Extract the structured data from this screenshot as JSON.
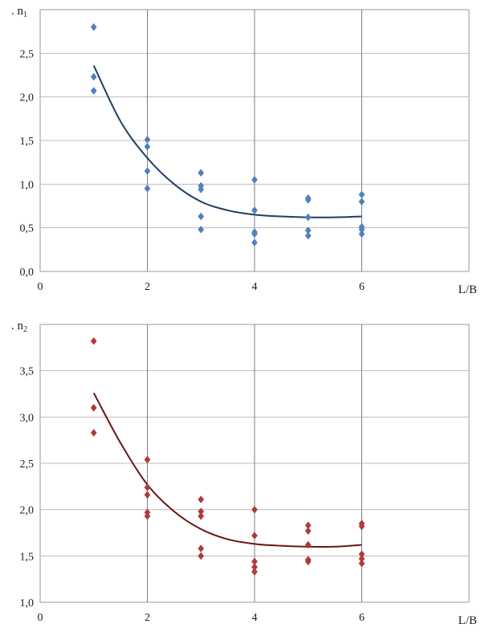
{
  "chart_data": [
    {
      "type": "scatter",
      "ylabel": "n",
      "ylabel_subscript": "1",
      "xlabel": "L/B",
      "xlim": [
        0,
        8
      ],
      "ylim": [
        0,
        3
      ],
      "xticks": [
        "0",
        "2",
        "4",
        "6"
      ],
      "yticks": [
        "0,0",
        "0,5",
        "1,0",
        "1,5",
        "2,0",
        "2,5"
      ],
      "grid": true,
      "marker_color": "#4f81bd",
      "line_color": "#1f3f60",
      "points": [
        {
          "x": 1,
          "y": 2.8
        },
        {
          "x": 1,
          "y": 2.23
        },
        {
          "x": 1,
          "y": 2.07
        },
        {
          "x": 2,
          "y": 1.51
        },
        {
          "x": 2,
          "y": 1.43
        },
        {
          "x": 2,
          "y": 1.15
        },
        {
          "x": 2,
          "y": 0.95
        },
        {
          "x": 3,
          "y": 1.13
        },
        {
          "x": 3,
          "y": 0.98
        },
        {
          "x": 3,
          "y": 0.94
        },
        {
          "x": 3,
          "y": 0.63
        },
        {
          "x": 3,
          "y": 0.48
        },
        {
          "x": 4,
          "y": 1.05
        },
        {
          "x": 4,
          "y": 0.7
        },
        {
          "x": 4,
          "y": 0.45
        },
        {
          "x": 4,
          "y": 0.43
        },
        {
          "x": 4,
          "y": 0.33
        },
        {
          "x": 5,
          "y": 0.84
        },
        {
          "x": 5,
          "y": 0.82
        },
        {
          "x": 5,
          "y": 0.62
        },
        {
          "x": 5,
          "y": 0.47
        },
        {
          "x": 5,
          "y": 0.41
        },
        {
          "x": 6,
          "y": 0.88
        },
        {
          "x": 6,
          "y": 0.8
        },
        {
          "x": 6,
          "y": 0.51
        },
        {
          "x": 6,
          "y": 0.48
        },
        {
          "x": 6,
          "y": 0.43
        }
      ],
      "trend": [
        {
          "x": 1,
          "y": 2.36
        },
        {
          "x": 1.5,
          "y": 1.72
        },
        {
          "x": 2,
          "y": 1.3
        },
        {
          "x": 2.5,
          "y": 1.0
        },
        {
          "x": 3,
          "y": 0.8
        },
        {
          "x": 3.5,
          "y": 0.7
        },
        {
          "x": 4,
          "y": 0.65
        },
        {
          "x": 4.5,
          "y": 0.63
        },
        {
          "x": 5,
          "y": 0.62
        },
        {
          "x": 5.5,
          "y": 0.62
        },
        {
          "x": 6,
          "y": 0.63
        }
      ]
    },
    {
      "type": "scatter",
      "ylabel": "n",
      "ylabel_subscript": "2",
      "xlabel": "L/B",
      "xlim": [
        0,
        8
      ],
      "ylim": [
        1,
        4
      ],
      "xticks": [
        "0",
        "2",
        "4",
        "6"
      ],
      "yticks": [
        "1,0",
        "1,5",
        "2,0",
        "2,5",
        "3,0",
        "3,5"
      ],
      "grid": true,
      "marker_color": "#b03a3a",
      "line_color": "#6b1515",
      "points": [
        {
          "x": 1,
          "y": 3.82
        },
        {
          "x": 1,
          "y": 3.1
        },
        {
          "x": 1,
          "y": 2.83
        },
        {
          "x": 2,
          "y": 2.54
        },
        {
          "x": 2,
          "y": 2.24
        },
        {
          "x": 2,
          "y": 2.16
        },
        {
          "x": 2,
          "y": 1.97
        },
        {
          "x": 2,
          "y": 1.93
        },
        {
          "x": 3,
          "y": 2.11
        },
        {
          "x": 3,
          "y": 1.98
        },
        {
          "x": 3,
          "y": 1.93
        },
        {
          "x": 3,
          "y": 1.58
        },
        {
          "x": 3,
          "y": 1.5
        },
        {
          "x": 4,
          "y": 2.0
        },
        {
          "x": 4,
          "y": 1.72
        },
        {
          "x": 4,
          "y": 1.44
        },
        {
          "x": 4,
          "y": 1.38
        },
        {
          "x": 4,
          "y": 1.33
        },
        {
          "x": 5,
          "y": 1.83
        },
        {
          "x": 5,
          "y": 1.77
        },
        {
          "x": 5,
          "y": 1.62
        },
        {
          "x": 5,
          "y": 1.46
        },
        {
          "x": 5,
          "y": 1.44
        },
        {
          "x": 6,
          "y": 1.85
        },
        {
          "x": 6,
          "y": 1.82
        },
        {
          "x": 6,
          "y": 1.52
        },
        {
          "x": 6,
          "y": 1.47
        },
        {
          "x": 6,
          "y": 1.42
        }
      ],
      "trend": [
        {
          "x": 1,
          "y": 3.26
        },
        {
          "x": 1.5,
          "y": 2.72
        },
        {
          "x": 2,
          "y": 2.27
        },
        {
          "x": 2.5,
          "y": 1.98
        },
        {
          "x": 3,
          "y": 1.79
        },
        {
          "x": 3.5,
          "y": 1.68
        },
        {
          "x": 4,
          "y": 1.63
        },
        {
          "x": 4.5,
          "y": 1.61
        },
        {
          "x": 5,
          "y": 1.6
        },
        {
          "x": 5.5,
          "y": 1.6
        },
        {
          "x": 6,
          "y": 1.62
        }
      ]
    }
  ]
}
